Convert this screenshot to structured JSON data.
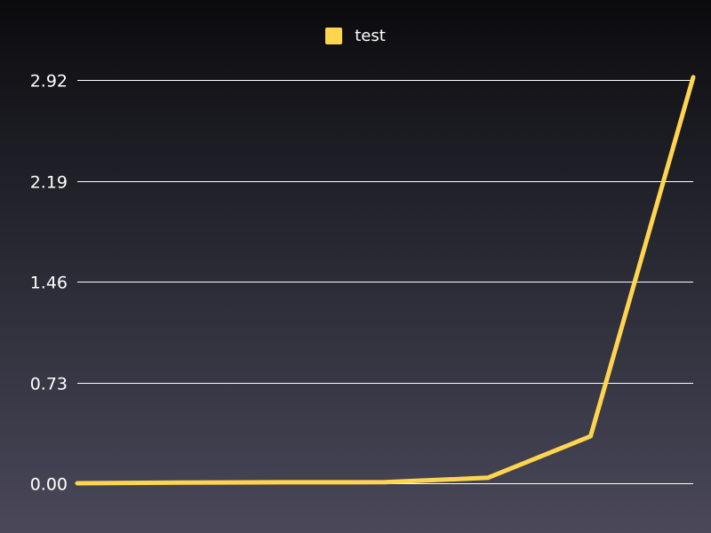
{
  "colors": {
    "series_line": "#ffd54f",
    "grid": "#ffffff",
    "text": "#ffffff"
  },
  "legend": {
    "label": "test"
  },
  "chart_data": {
    "type": "line",
    "title": "",
    "xlabel": "",
    "ylabel": "",
    "x": [
      1,
      2,
      3,
      4,
      5,
      6,
      7
    ],
    "series": [
      {
        "name": "test",
        "values": [
          0.0,
          0.005,
          0.007,
          0.008,
          0.04,
          0.34,
          2.94
        ]
      }
    ],
    "ylim": [
      0,
      2.92
    ],
    "yticks": [
      "0.00",
      "0.73",
      "1.46",
      "2.19",
      "2.92"
    ],
    "grid": true,
    "legend_position": "top-center"
  }
}
